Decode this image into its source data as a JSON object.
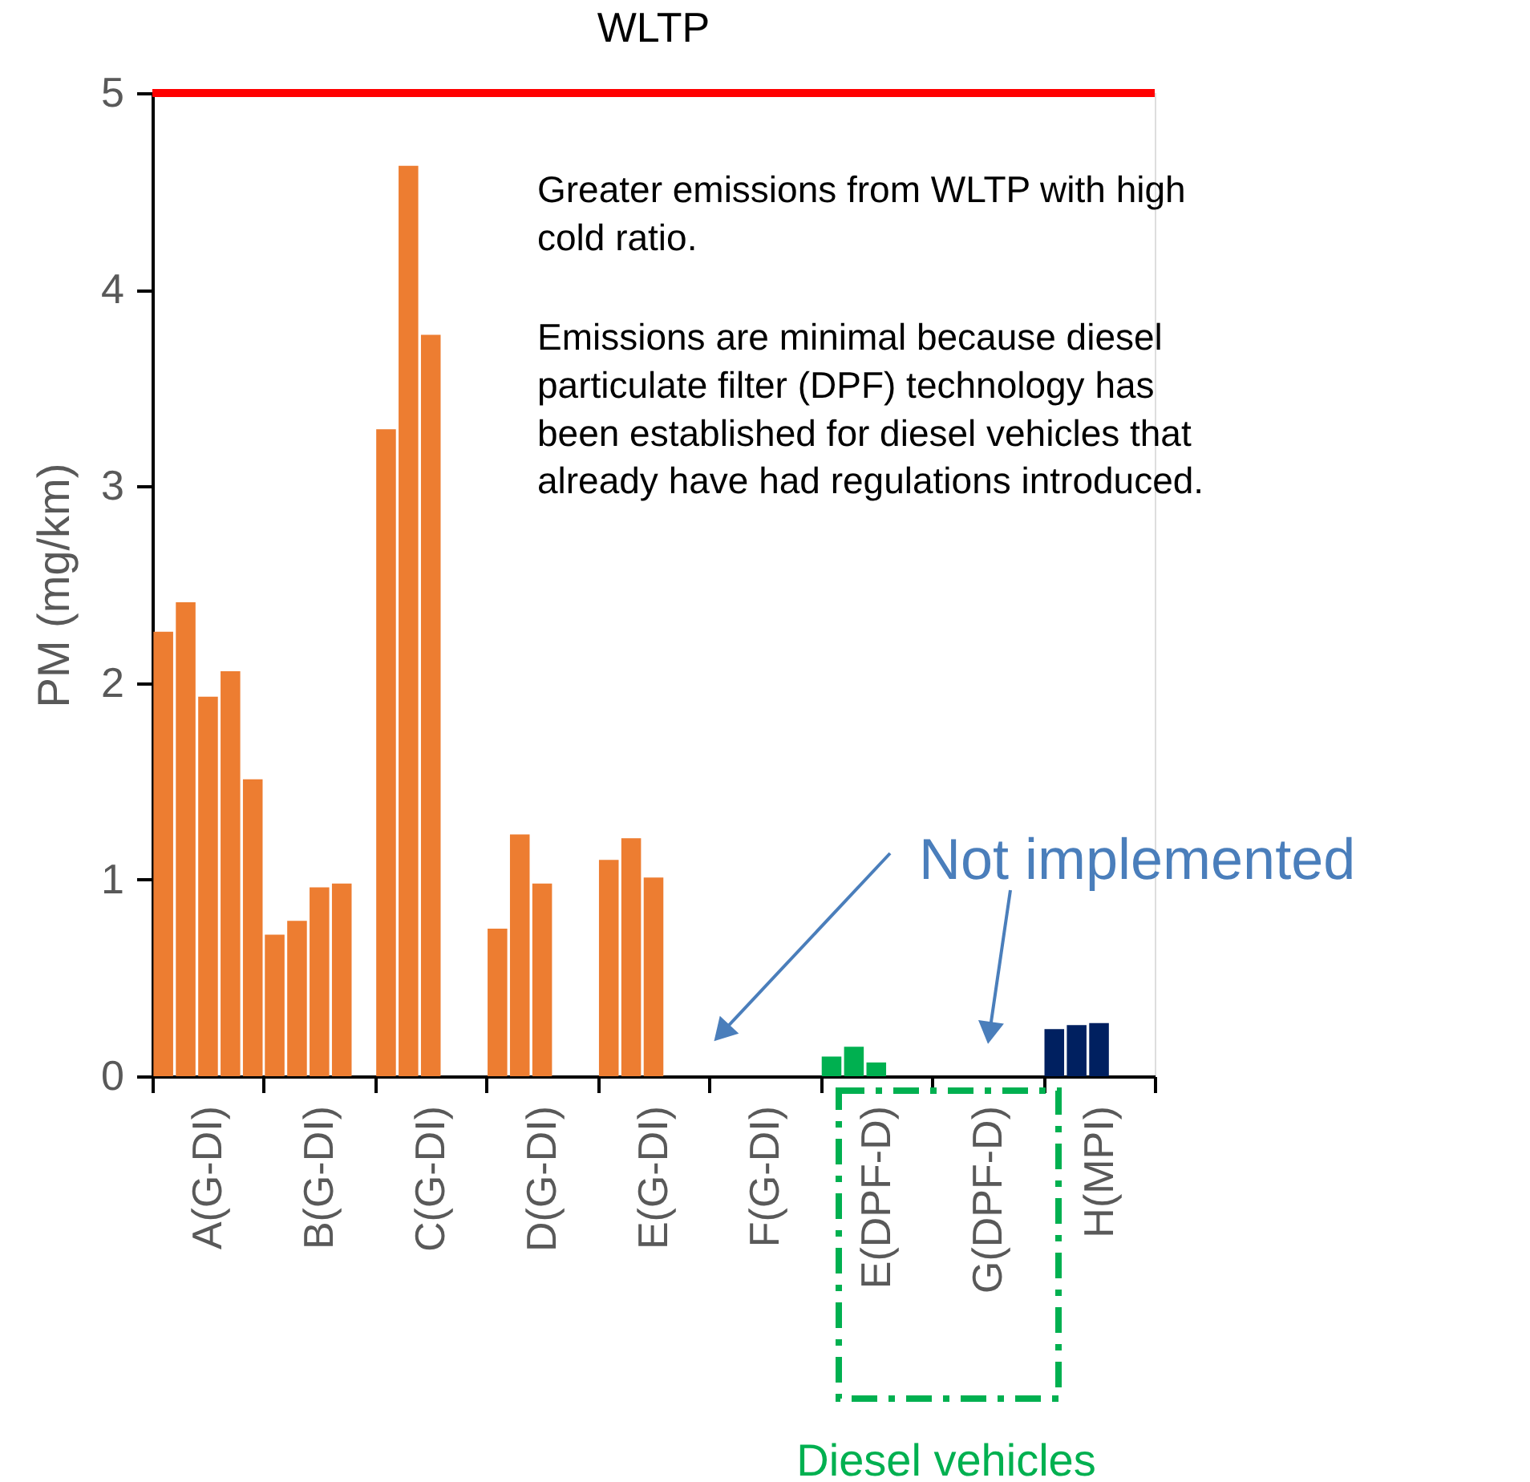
{
  "chart_data": {
    "type": "bar",
    "title": "WLTP",
    "ylabel": "PM (mg/km)",
    "categories": [
      "A(G-DI)",
      "B(G-DI)",
      "C(G-DI)",
      "D(G-DI)",
      "E(G-DI)",
      "F(G-DI)",
      "E(DPF-D)",
      "G(DPF-D)",
      "H(MPI)"
    ],
    "series": [
      {
        "colors": [
          "#ed7d31",
          "#ed7d31",
          "#ed7d31",
          "#ed7d31",
          "#ed7d31",
          "#ed7d31",
          "#00b050",
          "#00b050",
          "#002060"
        ],
        "values": [
          2.26,
          0.72,
          3.29,
          0.75,
          1.1,
          null,
          0.1,
          null,
          0.24
        ]
      },
      {
        "colors": [
          "#ed7d31",
          "#ed7d31",
          "#ed7d31",
          "#ed7d31",
          "#ed7d31",
          "#ed7d31",
          "#00b050",
          "#00b050",
          "#002060"
        ],
        "values": [
          2.41,
          0.79,
          4.63,
          1.23,
          1.21,
          null,
          0.15,
          null,
          0.26
        ]
      },
      {
        "colors": [
          "#ed7d31",
          "#ed7d31",
          "#ed7d31",
          "#ed7d31",
          "#ed7d31",
          "#ed7d31",
          "#00b050",
          "#00b050",
          "#002060"
        ],
        "values": [
          1.93,
          0.96,
          3.77,
          0.98,
          1.01,
          null,
          0.07,
          null,
          0.27
        ]
      },
      {
        "colors": [
          "#ed7d31",
          "#ed7d31",
          "#ed7d31",
          "#ed7d31",
          "#ed7d31",
          "#ed7d31",
          "#00b050",
          "#00b050",
          "#002060"
        ],
        "values": [
          2.06,
          0.98,
          null,
          null,
          null,
          null,
          null,
          null,
          null
        ]
      },
      {
        "colors": [
          "#ed7d31",
          "#ed7d31",
          "#ed7d31",
          "#ed7d31",
          "#ed7d31",
          "#ed7d31",
          "#00b050",
          "#00b050",
          "#002060"
        ],
        "values": [
          1.51,
          null,
          null,
          null,
          null,
          null,
          null,
          null,
          null
        ]
      }
    ],
    "ylim": [
      0,
      5
    ],
    "yticks": [
      0,
      1,
      2,
      3,
      4,
      5
    ],
    "grid": false,
    "ref_lines": [
      {
        "axis": "y",
        "value": 5,
        "color": "#ff0000"
      }
    ],
    "annotations": [
      "Greater emissions from WLTP with high cold ratio.",
      "Emissions are minimal because diesel particulate filter (DPF) technology has been established for diesel vehicles that already have had regulations introduced.",
      "Not implemented",
      "Diesel vehicles"
    ]
  }
}
